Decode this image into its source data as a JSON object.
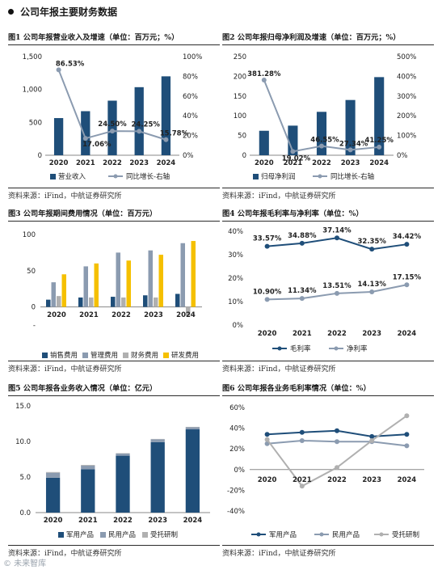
{
  "header": {
    "title": "公司年报主要财务数据"
  },
  "source_text": "资料来源：iFind，中航证券研究所",
  "watermark": "© 未来智库",
  "colors": {
    "navy": "#1f4e79",
    "gray": "#8b9bb0",
    "gold": "#f5c000",
    "lightgray": "#b0b0b0"
  },
  "chart_data": [
    {
      "id": "fig1",
      "title": "图1 公司年报营业收入及增速（单位：百万元；%）",
      "type": "bar+line",
      "categories": [
        "2020",
        "2021",
        "2022",
        "2023",
        "2024"
      ],
      "series": [
        {
          "name": "营业收入",
          "kind": "bar",
          "axis": "left",
          "values": [
            565,
            670,
            830,
            1035,
            1200
          ]
        },
        {
          "name": "同比增长-右轴",
          "kind": "line",
          "axis": "right",
          "values": [
            86.53,
            17.06,
            24.5,
            24.25,
            15.78
          ],
          "labels": [
            "86.53%",
            "17.06%",
            "24.50%",
            "24.25%",
            "15.78%"
          ]
        }
      ],
      "ylim_left": [
        0,
        1500
      ],
      "yticks_left": [
        "0",
        "500",
        "1,000",
        "1,500"
      ],
      "ylim_right": [
        0,
        100
      ],
      "yticks_right": [
        "0%",
        "20%",
        "40%",
        "60%",
        "80%",
        "100%"
      ]
    },
    {
      "id": "fig2",
      "title": "图2 公司年报归母净利润及增速（单位：百万元；%）",
      "type": "bar+line",
      "categories": [
        "2020",
        "2021",
        "2022",
        "2023",
        "2024"
      ],
      "series": [
        {
          "name": "归母净利润",
          "kind": "bar",
          "axis": "left",
          "values": [
            62,
            75,
            110,
            140,
            198
          ]
        },
        {
          "name": "同比增长-右轴",
          "kind": "line",
          "axis": "right",
          "values": [
            381.28,
            19.02,
            46.55,
            27.34,
            41.25
          ],
          "labels": [
            "381.28%",
            "19.02%",
            "46.55%",
            "27.34%",
            "41.25%"
          ]
        }
      ],
      "ylim_left": [
        0,
        250
      ],
      "yticks_left": [
        "0",
        "50",
        "100",
        "150",
        "200",
        "250"
      ],
      "ylim_right": [
        0,
        500
      ],
      "yticks_right": [
        "0%",
        "100%",
        "200%",
        "300%",
        "400%",
        "500%"
      ]
    },
    {
      "id": "fig3",
      "title": "图3 公司年报期间费用情况（单位：百万元）",
      "type": "bar",
      "categories": [
        "2020",
        "2021",
        "2022",
        "2023",
        "2024"
      ],
      "series": [
        {
          "name": "销售费用",
          "values": [
            10,
            13,
            14,
            16,
            18
          ]
        },
        {
          "name": "管理费用",
          "values": [
            34,
            56,
            75,
            78,
            88
          ]
        },
        {
          "name": "财务费用",
          "values": [
            15,
            13,
            13,
            13,
            -12
          ]
        },
        {
          "name": "研发费用",
          "values": [
            45,
            60,
            64,
            72,
            91
          ]
        }
      ],
      "ylim": [
        -25,
        100
      ],
      "yticks": [
        "-",
        "0",
        "50",
        "100"
      ]
    },
    {
      "id": "fig4",
      "title": "图4 公司年报毛利率与净利率（单位：%）",
      "type": "line",
      "categories": [
        "2020",
        "2021",
        "2022",
        "2023",
        "2024"
      ],
      "series": [
        {
          "name": "毛利率",
          "values": [
            33.57,
            34.88,
            37.14,
            32.35,
            34.42
          ],
          "labels": [
            "33.57%",
            "34.88%",
            "37.14%",
            "32.35%",
            "34.42%"
          ]
        },
        {
          "name": "净利率",
          "values": [
            10.9,
            11.34,
            13.51,
            14.13,
            17.15
          ],
          "labels": [
            "10.90%",
            "11.34%",
            "13.51%",
            "14.13%",
            "17.15%"
          ]
        }
      ],
      "ylim": [
        0,
        40
      ],
      "yticks": [
        "0%",
        "10%",
        "20%",
        "30%",
        "40%"
      ]
    },
    {
      "id": "fig5",
      "title": "图5 公司年报各业务收入情况（单位：亿元）",
      "type": "stacked-bar",
      "categories": [
        "2020",
        "2021",
        "2022",
        "2023",
        "2024"
      ],
      "series": [
        {
          "name": "军用产品",
          "values": [
            4.9,
            6.1,
            8.0,
            9.9,
            11.7
          ]
        },
        {
          "name": "民用产品",
          "values": [
            0.7,
            0.5,
            0.3,
            0.4,
            0.3
          ]
        },
        {
          "name": "受托研制",
          "values": [
            0.1,
            0.1,
            0.05,
            0.05,
            0.05
          ]
        }
      ],
      "ylim": [
        0,
        15
      ],
      "yticks": [
        "0.0",
        "5.0",
        "10.0",
        "15.0"
      ]
    },
    {
      "id": "fig6",
      "title": "图6 公司年报各业务毛利率情况（单位：%）",
      "type": "line",
      "categories": [
        "2020",
        "2021",
        "2022",
        "2023",
        "2024"
      ],
      "series": [
        {
          "name": "军用产品",
          "values": [
            34,
            36,
            37.5,
            32,
            34
          ]
        },
        {
          "name": "民用产品",
          "values": [
            25,
            28,
            27,
            27,
            23
          ]
        },
        {
          "name": "受托研制",
          "values": [
            29,
            -16,
            2,
            28,
            52
          ]
        }
      ],
      "ylim": [
        -40,
        60
      ],
      "yticks": [
        "-40%",
        "-20%",
        "0%",
        "20%",
        "40%",
        "60%"
      ]
    }
  ]
}
